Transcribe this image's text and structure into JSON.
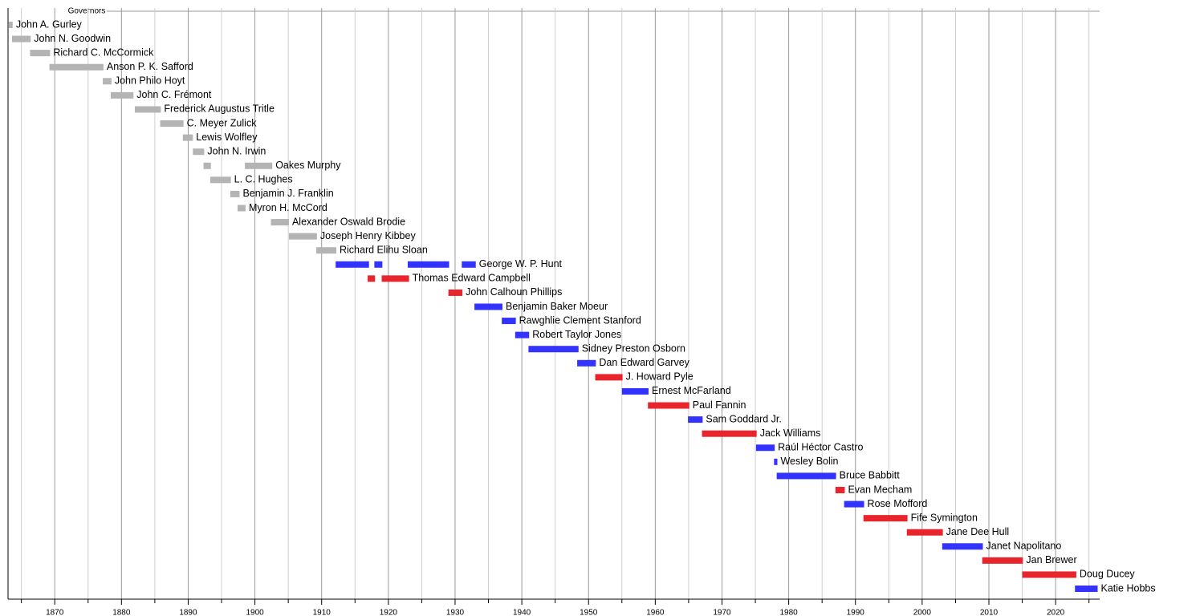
{
  "chart_data": {
    "type": "timeline",
    "title": "Governors",
    "xlim": [
      1863,
      2026.6
    ],
    "xticks": [
      1870,
      1880,
      1890,
      1900,
      1910,
      1920,
      1930,
      1940,
      1950,
      1960,
      1970,
      1980,
      1990,
      2000,
      2010,
      2020
    ],
    "xgrid_minor": [
      1865,
      1875,
      1885,
      1895,
      1905,
      1915,
      1925,
      1935,
      1945,
      1955,
      1965,
      1975,
      1985,
      1995,
      2005,
      2015,
      2025
    ],
    "grid": true,
    "rows": [
      {
        "name": "John A. Gurley",
        "color": "#b4b4b4",
        "spans": [
          [
            1863.1,
            1863.7
          ]
        ]
      },
      {
        "name": "John N. Goodwin",
        "color": "#b4b4b4",
        "spans": [
          [
            1863.6,
            1866.4
          ]
        ]
      },
      {
        "name": "Richard C. McCormick",
        "color": "#b4b4b4",
        "spans": [
          [
            1866.3,
            1869.3
          ]
        ]
      },
      {
        "name": "Anson P. K. Safford",
        "color": "#b4b4b4",
        "spans": [
          [
            1869.2,
            1877.3
          ]
        ]
      },
      {
        "name": "John Philo Hoyt",
        "color": "#b4b4b4",
        "spans": [
          [
            1877.2,
            1878.5
          ]
        ]
      },
      {
        "name": "John C. Frémont",
        "color": "#b4b4b4",
        "spans": [
          [
            1878.4,
            1881.8
          ]
        ]
      },
      {
        "name": "Frederick Augustus Tritle",
        "color": "#b4b4b4",
        "spans": [
          [
            1882.0,
            1885.9
          ]
        ]
      },
      {
        "name": "C. Meyer Zulick",
        "color": "#b4b4b4",
        "spans": [
          [
            1885.8,
            1889.3
          ]
        ]
      },
      {
        "name": "Lewis Wolfley",
        "color": "#b4b4b4",
        "spans": [
          [
            1889.2,
            1890.7
          ]
        ]
      },
      {
        "name": "John N. Irwin",
        "color": "#b4b4b4",
        "spans": [
          [
            1890.7,
            1892.4
          ]
        ]
      },
      {
        "name": "Oakes Murphy",
        "color": "#b4b4b4",
        "spans": [
          [
            1892.3,
            1893.4
          ],
          [
            1898.5,
            1902.6
          ]
        ]
      },
      {
        "name": "L. C. Hughes",
        "color": "#b4b4b4",
        "spans": [
          [
            1893.3,
            1896.4
          ]
        ]
      },
      {
        "name": "Benjamin J. Franklin",
        "color": "#b4b4b4",
        "spans": [
          [
            1896.3,
            1897.7
          ]
        ]
      },
      {
        "name": "Myron H. McCord",
        "color": "#b4b4b4",
        "spans": [
          [
            1897.4,
            1898.6
          ]
        ]
      },
      {
        "name": "Alexander Oswald Brodie",
        "color": "#b4b4b4",
        "spans": [
          [
            1902.4,
            1905.1
          ]
        ]
      },
      {
        "name": "Joseph Henry Kibbey",
        "color": "#b4b4b4",
        "spans": [
          [
            1905.1,
            1909.3
          ]
        ]
      },
      {
        "name": "Richard Elihu Sloan",
        "color": "#b4b4b4",
        "spans": [
          [
            1909.2,
            1912.2
          ]
        ]
      },
      {
        "name": "George W. P. Hunt",
        "color": "#3333ff",
        "spans": [
          [
            1912.1,
            1917.1
          ],
          [
            1917.9,
            1919.1
          ],
          [
            1922.9,
            1929.1
          ],
          [
            1931.0,
            1933.1
          ]
        ]
      },
      {
        "name": "Thomas Edward Campbell",
        "color": "#e8242c",
        "spans": [
          [
            1916.9,
            1918.0
          ],
          [
            1919.0,
            1923.1
          ]
        ]
      },
      {
        "name": "John Calhoun Phillips",
        "color": "#e8242c",
        "spans": [
          [
            1929.0,
            1931.1
          ]
        ]
      },
      {
        "name": "Benjamin Baker Moeur",
        "color": "#3333ff",
        "spans": [
          [
            1932.9,
            1937.1
          ]
        ]
      },
      {
        "name": "Rawghlie Clement Stanford",
        "color": "#3333ff",
        "spans": [
          [
            1937.0,
            1939.1
          ]
        ]
      },
      {
        "name": "Robert Taylor Jones",
        "color": "#3333ff",
        "spans": [
          [
            1939.0,
            1941.1
          ]
        ]
      },
      {
        "name": "Sidney Preston Osborn",
        "color": "#3333ff",
        "spans": [
          [
            1941.0,
            1948.5
          ]
        ]
      },
      {
        "name": "Dan Edward Garvey",
        "color": "#3333ff",
        "spans": [
          [
            1948.3,
            1951.1
          ]
        ]
      },
      {
        "name": "J. Howard Pyle",
        "color": "#e8242c",
        "spans": [
          [
            1951.0,
            1955.1
          ]
        ]
      },
      {
        "name": "Ernest McFarland",
        "color": "#3333ff",
        "spans": [
          [
            1955.0,
            1959.0
          ]
        ]
      },
      {
        "name": "Paul Fannin",
        "color": "#e8242c",
        "spans": [
          [
            1958.9,
            1965.1
          ]
        ]
      },
      {
        "name": "Sam Goddard Jr.",
        "color": "#3333ff",
        "spans": [
          [
            1964.9,
            1967.1
          ]
        ]
      },
      {
        "name": "Jack Williams",
        "color": "#e8242c",
        "spans": [
          [
            1967.0,
            1975.2
          ]
        ]
      },
      {
        "name": "Raúl Héctor Castro",
        "color": "#3333ff",
        "spans": [
          [
            1975.1,
            1977.9
          ]
        ]
      },
      {
        "name": "Wesley Bolin",
        "color": "#3333ff",
        "spans": [
          [
            1977.8,
            1978.3
          ]
        ]
      },
      {
        "name": "Bruce Babbitt",
        "color": "#3333ff",
        "spans": [
          [
            1978.2,
            1987.1
          ]
        ]
      },
      {
        "name": "Evan Mecham",
        "color": "#e8242c",
        "spans": [
          [
            1987.0,
            1988.4
          ]
        ]
      },
      {
        "name": "Rose Mofford",
        "color": "#3333ff",
        "spans": [
          [
            1988.3,
            1991.3
          ]
        ]
      },
      {
        "name": "Fife Symington",
        "color": "#e8242c",
        "spans": [
          [
            1991.2,
            1997.8
          ]
        ]
      },
      {
        "name": "Jane Dee Hull",
        "color": "#e8242c",
        "spans": [
          [
            1997.7,
            2003.1
          ]
        ]
      },
      {
        "name": "Janet Napolitano",
        "color": "#3333ff",
        "spans": [
          [
            2003.0,
            2009.1
          ]
        ]
      },
      {
        "name": "Jan Brewer",
        "color": "#e8242c",
        "spans": [
          [
            2009.0,
            2015.1
          ]
        ]
      },
      {
        "name": "Doug Ducey",
        "color": "#e8242c",
        "spans": [
          [
            2015.0,
            2023.1
          ]
        ]
      },
      {
        "name": "Katie Hobbs",
        "color": "#3333ff",
        "spans": [
          [
            2022.9,
            2026.3
          ]
        ]
      }
    ]
  }
}
